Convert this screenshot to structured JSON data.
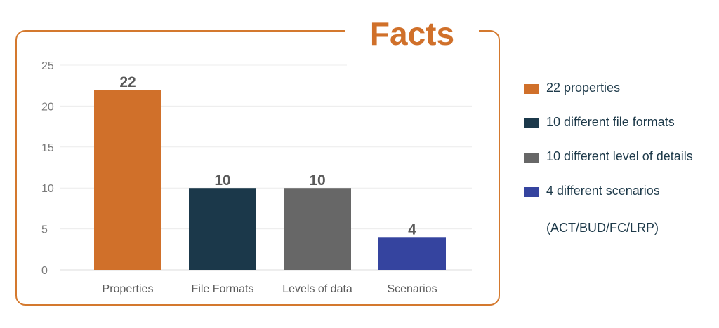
{
  "title": "Facts",
  "chart_data": {
    "type": "bar",
    "categories": [
      "Properties",
      "File Formats",
      "Levels of data",
      "Scenarios"
    ],
    "values": [
      22,
      10,
      10,
      4
    ],
    "data_labels": [
      "22",
      "10",
      "10",
      "4"
    ],
    "colors": [
      "#d0702a",
      "#1b384a",
      "#676767",
      "#35449f"
    ],
    "ylim": [
      0,
      25
    ],
    "yticks": [
      0,
      5,
      10,
      15,
      20,
      25
    ],
    "grid": true,
    "legend_position": "right"
  },
  "legend": {
    "items": [
      {
        "label": "22 properties",
        "color": "#d0702a"
      },
      {
        "label": "10 different file formats",
        "color": "#1b384a"
      },
      {
        "label": "10 different level of details",
        "color": "#676767"
      },
      {
        "label": "4 different scenarios",
        "color": "#35449f"
      }
    ],
    "note": "(ACT/BUD/FC/LRP)"
  }
}
